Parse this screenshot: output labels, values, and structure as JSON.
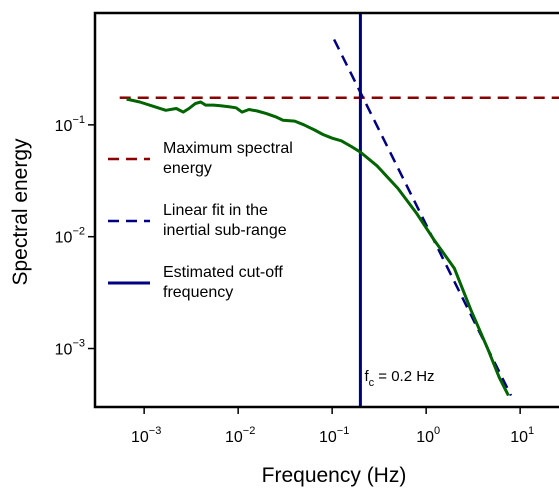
{
  "chart_data": {
    "type": "line",
    "xlabel": "Frequency (Hz)",
    "ylabel": "Spectral energy",
    "x_scale": "log",
    "y_scale": "log",
    "xlim": [
      0.0003,
      30
    ],
    "ylim": [
      0.0003,
      1
    ],
    "x_ticks": [
      {
        "value": 0.001,
        "base": "10",
        "exp": "−3"
      },
      {
        "value": 0.01,
        "base": "10",
        "exp": "−2"
      },
      {
        "value": 0.1,
        "base": "10",
        "exp": "−1"
      },
      {
        "value": 1,
        "base": "10",
        "exp": "0"
      },
      {
        "value": 10,
        "base": "10",
        "exp": "1"
      }
    ],
    "y_ticks": [
      {
        "value": 0.001,
        "base": "10",
        "exp": "−3"
      },
      {
        "value": 0.01,
        "base": "10",
        "exp": "−2"
      },
      {
        "value": 0.1,
        "base": "10",
        "exp": "−1"
      }
    ],
    "grid": false,
    "legend_position": "center-left",
    "series": [
      {
        "name": "Maximum spectral energy",
        "style": "dashed",
        "color": "#8b0000",
        "x": [
          0.00055,
          30
        ],
        "y": [
          0.175,
          0.175
        ]
      },
      {
        "name": "Linear fit in the inertial sub-range",
        "style": "dashed",
        "color": "#000080",
        "x": [
          0.105,
          8.0
        ],
        "y": [
          0.58,
          0.00038
        ]
      },
      {
        "name": "Estimated cut-off frequency",
        "style": "solid",
        "color": "#000080",
        "x": [
          0.2,
          0.2
        ],
        "y": [
          0.0003,
          1
        ]
      },
      {
        "name": "",
        "style": "solid",
        "color": "#006400",
        "x": [
          0.00065,
          0.0009,
          0.0013,
          0.0017,
          0.0022,
          0.0026,
          0.003,
          0.0035,
          0.004,
          0.0045,
          0.0055,
          0.0065,
          0.008,
          0.0095,
          0.011,
          0.013,
          0.016,
          0.02,
          0.025,
          0.03,
          0.04,
          0.05,
          0.065,
          0.08,
          0.1,
          0.125,
          0.16,
          0.2,
          0.3,
          0.5,
          0.8,
          1.2,
          2.0,
          3.0,
          4.5,
          6.0,
          7.5
        ],
        "y": [
          0.17,
          0.16,
          0.145,
          0.135,
          0.14,
          0.13,
          0.14,
          0.155,
          0.16,
          0.15,
          0.15,
          0.148,
          0.145,
          0.142,
          0.13,
          0.137,
          0.133,
          0.126,
          0.118,
          0.11,
          0.108,
          0.1,
          0.09,
          0.082,
          0.076,
          0.072,
          0.064,
          0.057,
          0.043,
          0.027,
          0.016,
          0.0095,
          0.0052,
          0.0022,
          0.001,
          0.00055,
          0.00038
        ]
      }
    ],
    "legend": [
      {
        "lines": [
          "Maximum spectral",
          " energy"
        ],
        "style": "dashed",
        "color": "#8b0000"
      },
      {
        "lines": [
          "Linear fit in the",
          " inertial sub-range"
        ],
        "style": "dashed",
        "color": "#000080"
      },
      {
        "lines": [
          "Estimated cut-off",
          " frequency"
        ],
        "style": "solid",
        "color": "#000080"
      }
    ],
    "annotation": {
      "main": "f",
      "sub": "c",
      "rest": " = 0.2 Hz",
      "x": 0.2,
      "y": 0.0005
    }
  }
}
